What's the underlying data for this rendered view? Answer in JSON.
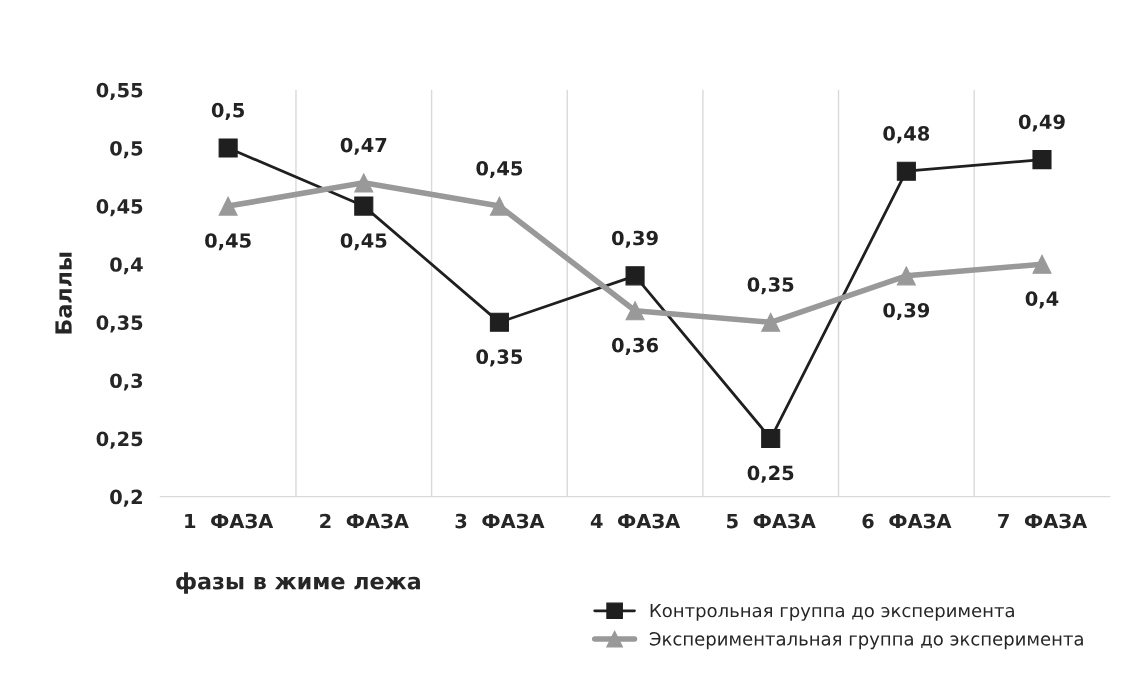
{
  "chart_data": {
    "type": "line",
    "xlabel": "фазы в жиме лежа",
    "ylabel": "Баллы",
    "categories": [
      "1  ФАЗА",
      "2  ФАЗА",
      "3  ФАЗА",
      "4  ФАЗА",
      "5  ФАЗА",
      "6  ФАЗА",
      "7  ФАЗА"
    ],
    "ylim": [
      0.2,
      0.55
    ],
    "yticks": [
      {
        "value": 0.2,
        "label": "0,2"
      },
      {
        "value": 0.25,
        "label": "0,25"
      },
      {
        "value": 0.3,
        "label": "0,3"
      },
      {
        "value": 0.35,
        "label": "0,35"
      },
      {
        "value": 0.4,
        "label": "0,4"
      },
      {
        "value": 0.45,
        "label": "0,45"
      },
      {
        "value": 0.5,
        "label": "0,5"
      },
      {
        "value": 0.55,
        "label": "0,55"
      }
    ],
    "grid": "x",
    "legend": "bottom right",
    "series": [
      {
        "name": "Контрольная группа до эксперимента",
        "color": "#1f1f1f",
        "marker": "square",
        "values": [
          0.5,
          0.45,
          0.35,
          0.39,
          0.25,
          0.48,
          0.49
        ],
        "value_labels": [
          "0,5",
          "0,45",
          "0,35",
          "0,39",
          "0,25",
          "0,48",
          "0,49"
        ]
      },
      {
        "name": "Экспериментальная группа до эксперимента",
        "color": "#999999",
        "marker": "triangle",
        "values": [
          0.45,
          0.47,
          0.45,
          0.36,
          0.35,
          0.39,
          0.4
        ],
        "value_labels": [
          "0,45",
          "0,47",
          "0,45",
          "0,36",
          "0,35",
          "0,39",
          "0,4"
        ]
      }
    ]
  }
}
